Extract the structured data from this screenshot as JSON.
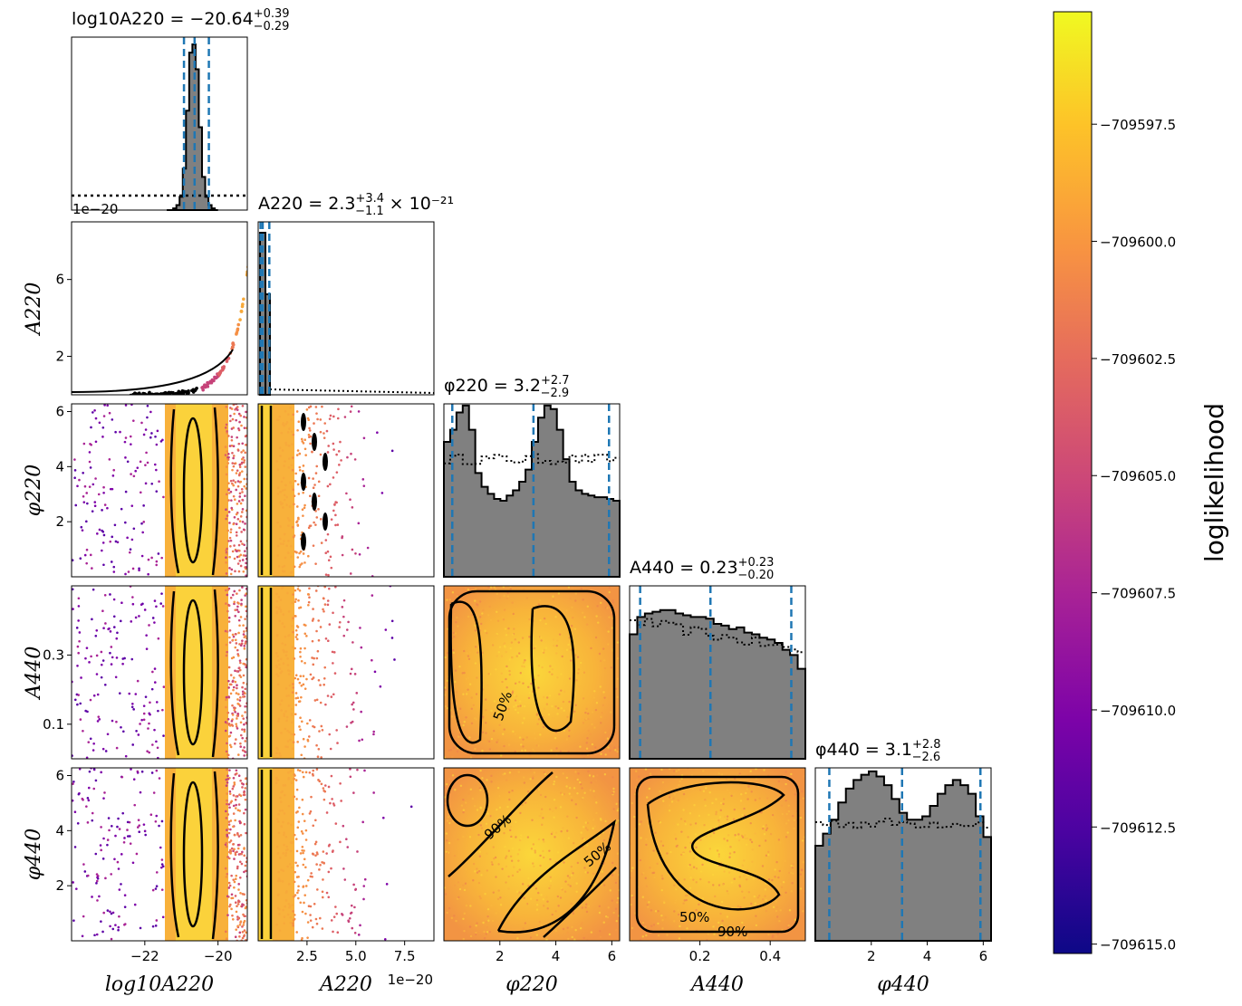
{
  "chart_data": {
    "type": "corner",
    "parameters": [
      {
        "key": "lgA220",
        "label": "log10A220",
        "range": [
          -24.0,
          -19.2
        ],
        "ticks": [
          -22,
          -20
        ],
        "ticklabels": [
          "−22",
          "−20"
        ]
      },
      {
        "key": "A220",
        "label": "A220",
        "range": [
          0,
          9
        ],
        "ticks": [
          2.5,
          5.0,
          7.5
        ],
        "ticklabels": [
          "2.5",
          "5.0",
          "7.5"
        ],
        "offset": "1e−20"
      },
      {
        "key": "phi220",
        "label": "φ220",
        "range": [
          0,
          6.28
        ],
        "ticks": [
          2,
          4,
          6
        ],
        "ticklabels": [
          "2",
          "4",
          "6"
        ]
      },
      {
        "key": "A440",
        "label": "A440",
        "range": [
          0,
          0.5
        ],
        "ticks": [
          0.2,
          0.4
        ],
        "ticklabels": [
          "0.2",
          "0.4"
        ]
      },
      {
        "key": "phi440",
        "label": "φ440",
        "range": [
          0,
          6.28
        ],
        "ticks": [
          2,
          4,
          6
        ],
        "ticklabels": [
          "2",
          "4",
          "6"
        ]
      }
    ],
    "diag_titles": [
      {
        "name": "log10A220",
        "value": "= −20.64",
        "sup": "+0.39",
        "sub": "−0.29",
        "suffix": ""
      },
      {
        "name": "A220",
        "value": "= 2.3",
        "sup": "+3.4",
        "sub": "−1.1",
        "suffix": "× 10⁻²¹"
      },
      {
        "name": "φ220",
        "value": "= 3.2",
        "sup": "+2.7",
        "sub": "−2.9",
        "suffix": ""
      },
      {
        "name": "A440",
        "value": "= 0.23",
        "sup": "+0.23",
        "sub": "−0.20",
        "suffix": ""
      },
      {
        "name": "φ440",
        "value": "= 3.1",
        "sup": "+2.8",
        "sub": "−2.6",
        "suffix": ""
      }
    ],
    "quantiles": [
      [
        -20.93,
        -20.64,
        -20.25
      ],
      [
        0.12,
        0.23,
        0.57
      ],
      [
        0.3,
        3.2,
        5.9
      ],
      [
        0.03,
        0.23,
        0.46
      ],
      [
        0.5,
        3.1,
        5.9
      ]
    ],
    "row_ticks": {
      "A220": {
        "ticks": [
          2,
          6
        ],
        "ticklabels": [
          "2",
          "6"
        ],
        "range": [
          0,
          9
        ],
        "offset": "1e−20"
      },
      "phi220": {
        "ticks": [
          2,
          4,
          6
        ],
        "ticklabels": [
          "2",
          "4",
          "6"
        ],
        "range": [
          0,
          6.28
        ]
      },
      "A440": {
        "ticks": [
          0.1,
          0.3
        ],
        "ticklabels": [
          "0.1",
          "0.3"
        ],
        "range": [
          0,
          0.5
        ]
      },
      "phi440": {
        "ticks": [
          2,
          4,
          6
        ],
        "ticklabels": [
          "2",
          "4",
          "6"
        ],
        "range": [
          0,
          6.28
        ]
      }
    },
    "contour_levels": [
      "50%",
      "90%"
    ],
    "hist_lgA220": [
      0,
      0,
      1,
      3,
      8,
      25,
      60,
      95,
      100,
      85,
      50,
      20,
      8,
      3,
      1,
      0
    ],
    "hist_phi220": [
      0.78,
      0.85,
      0.95,
      0.99,
      0.85,
      0.6,
      0.52,
      0.48,
      0.45,
      0.44,
      0.47,
      0.5,
      0.55,
      0.62,
      0.78,
      0.92,
      0.99,
      0.97,
      0.85,
      0.68,
      0.55,
      0.5,
      0.48,
      0.47,
      0.46,
      0.46,
      0.45,
      0.44
    ],
    "hist_A440": [
      0.72,
      0.82,
      0.84,
      0.85,
      0.86,
      0.86,
      0.84,
      0.83,
      0.82,
      0.82,
      0.81,
      0.78,
      0.77,
      0.75,
      0.76,
      0.73,
      0.72,
      0.7,
      0.69,
      0.67,
      0.63,
      0.6,
      0.52
    ],
    "hist_phi440": [
      0.55,
      0.62,
      0.7,
      0.8,
      0.88,
      0.93,
      0.96,
      0.98,
      0.95,
      0.9,
      0.82,
      0.74,
      0.7,
      0.7,
      0.72,
      0.78,
      0.85,
      0.9,
      0.93,
      0.9,
      0.85,
      0.72,
      0.6
    ],
    "colorbar": {
      "label": "loglikelihood",
      "range": [
        -709615.2,
        -709595.1
      ],
      "ticks": [
        -709597.5,
        -709600.0,
        -709602.5,
        -709605.0,
        -709607.5,
        -709610.0,
        -709612.5,
        -709615.0
      ],
      "ticklabels": [
        "−709597.5",
        "−709600.0",
        "−709602.5",
        "−709605.0",
        "−709607.5",
        "−709610.0",
        "−709612.5",
        "−709615.0"
      ],
      "colormap": "plasma"
    },
    "colors": {
      "hist_fill": "#808080",
      "quantile_line": "#1f77b4",
      "contour": "#000000"
    }
  }
}
